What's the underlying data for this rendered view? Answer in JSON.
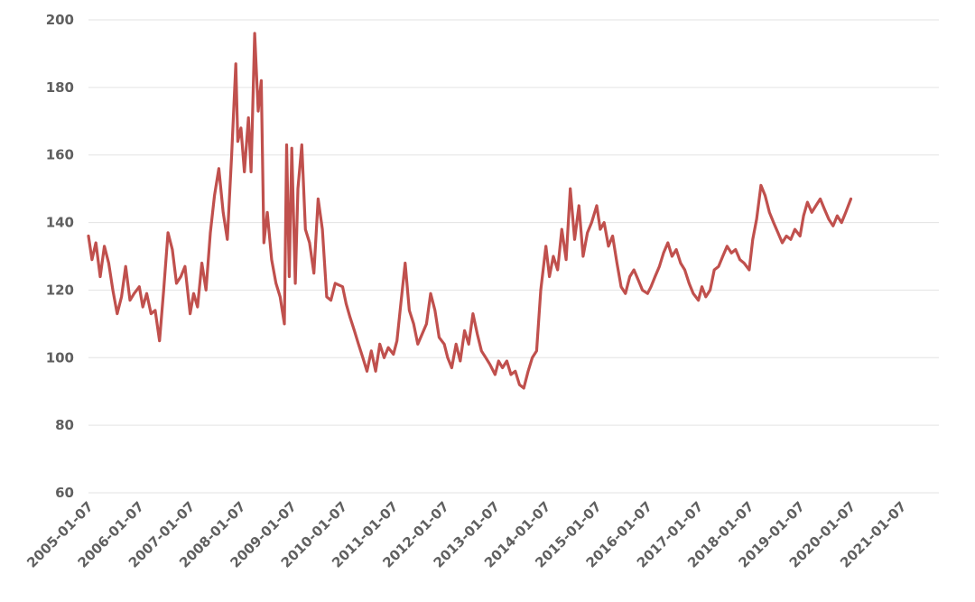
{
  "chart_data": {
    "type": "line",
    "title": "",
    "xlabel": "",
    "ylabel": "",
    "ylim": [
      60,
      200
    ],
    "yticks": [
      60,
      80,
      100,
      120,
      140,
      160,
      180,
      200
    ],
    "xlim": [
      "2005-01-07",
      "2022-02-11"
    ],
    "xticks": [
      "2005-01-07",
      "2006-01-07",
      "2007-01-07",
      "2008-01-07",
      "2009-01-07",
      "2010-01-07",
      "2011-01-07",
      "2012-01-07",
      "2013-01-07",
      "2014-01-07",
      "2015-01-07",
      "2016-01-07",
      "2017-01-07",
      "2018-01-07",
      "2019-01-07",
      "2020-01-07",
      "2021-01-07"
    ],
    "grid": "horizontal",
    "legend": "none",
    "series": [
      {
        "color": "#c0504d",
        "points": [
          [
            "2005-01-07",
            136
          ],
          [
            "2005-02-01",
            129
          ],
          [
            "2005-03-01",
            134
          ],
          [
            "2005-04-01",
            124
          ],
          [
            "2005-05-01",
            133
          ],
          [
            "2005-06-01",
            128
          ],
          [
            "2005-07-01",
            120
          ],
          [
            "2005-08-01",
            113
          ],
          [
            "2005-09-01",
            118
          ],
          [
            "2005-10-01",
            127
          ],
          [
            "2005-11-01",
            117
          ],
          [
            "2005-12-01",
            119
          ],
          [
            "2006-01-07",
            121
          ],
          [
            "2006-02-01",
            115
          ],
          [
            "2006-03-01",
            119
          ],
          [
            "2006-04-01",
            113
          ],
          [
            "2006-05-01",
            114
          ],
          [
            "2006-06-01",
            105
          ],
          [
            "2006-07-01",
            120
          ],
          [
            "2006-08-01",
            137
          ],
          [
            "2006-09-01",
            132
          ],
          [
            "2006-10-01",
            122
          ],
          [
            "2006-11-01",
            124
          ],
          [
            "2006-12-01",
            127
          ],
          [
            "2007-01-07",
            113
          ],
          [
            "2007-02-01",
            119
          ],
          [
            "2007-03-01",
            115
          ],
          [
            "2007-04-01",
            128
          ],
          [
            "2007-05-01",
            120
          ],
          [
            "2007-06-01",
            137
          ],
          [
            "2007-07-01",
            148
          ],
          [
            "2007-08-01",
            156
          ],
          [
            "2007-09-01",
            143
          ],
          [
            "2007-10-01",
            135
          ],
          [
            "2007-11-01",
            160
          ],
          [
            "2007-12-01",
            187
          ],
          [
            "2007-12-15",
            164
          ],
          [
            "2008-01-07",
            168
          ],
          [
            "2008-02-01",
            155
          ],
          [
            "2008-03-01",
            171
          ],
          [
            "2008-03-20",
            155
          ],
          [
            "2008-04-15",
            196
          ],
          [
            "2008-05-10",
            173
          ],
          [
            "2008-06-01",
            182
          ],
          [
            "2008-06-20",
            134
          ],
          [
            "2008-07-15",
            143
          ],
          [
            "2008-08-15",
            129
          ],
          [
            "2008-09-15",
            122
          ],
          [
            "2008-10-15",
            118
          ],
          [
            "2008-11-15",
            110
          ],
          [
            "2008-12-01",
            163
          ],
          [
            "2008-12-20",
            124
          ],
          [
            "2009-01-07",
            162
          ],
          [
            "2009-02-01",
            122
          ],
          [
            "2009-02-20",
            150
          ],
          [
            "2009-03-20",
            163
          ],
          [
            "2009-04-15",
            138
          ],
          [
            "2009-05-15",
            134
          ],
          [
            "2009-06-15",
            125
          ],
          [
            "2009-07-15",
            147
          ],
          [
            "2009-08-15",
            138
          ],
          [
            "2009-09-15",
            118
          ],
          [
            "2009-10-15",
            117
          ],
          [
            "2009-11-15",
            122
          ],
          [
            "2010-01-07",
            121
          ],
          [
            "2010-02-01",
            116
          ],
          [
            "2010-03-01",
            112
          ],
          [
            "2010-04-01",
            108
          ],
          [
            "2010-05-01",
            104
          ],
          [
            "2010-06-01",
            100
          ],
          [
            "2010-07-01",
            96
          ],
          [
            "2010-08-01",
            102
          ],
          [
            "2010-09-01",
            96
          ],
          [
            "2010-10-01",
            104
          ],
          [
            "2010-11-01",
            100
          ],
          [
            "2010-12-01",
            103
          ],
          [
            "2011-01-07",
            101
          ],
          [
            "2011-02-01",
            105
          ],
          [
            "2011-03-01",
            116
          ],
          [
            "2011-04-01",
            128
          ],
          [
            "2011-05-01",
            114
          ],
          [
            "2011-06-01",
            110
          ],
          [
            "2011-07-01",
            104
          ],
          [
            "2011-08-01",
            107
          ],
          [
            "2011-09-01",
            110
          ],
          [
            "2011-10-01",
            119
          ],
          [
            "2011-11-01",
            114
          ],
          [
            "2011-12-01",
            106
          ],
          [
            "2012-01-07",
            104
          ],
          [
            "2012-02-01",
            100
          ],
          [
            "2012-03-01",
            97
          ],
          [
            "2012-04-01",
            104
          ],
          [
            "2012-05-01",
            99
          ],
          [
            "2012-06-01",
            108
          ],
          [
            "2012-07-01",
            104
          ],
          [
            "2012-08-01",
            113
          ],
          [
            "2012-09-01",
            107
          ],
          [
            "2012-10-01",
            102
          ],
          [
            "2012-11-01",
            100
          ],
          [
            "2012-12-01",
            98
          ],
          [
            "2013-01-07",
            95
          ],
          [
            "2013-02-01",
            99
          ],
          [
            "2013-03-01",
            97
          ],
          [
            "2013-04-01",
            99
          ],
          [
            "2013-05-01",
            95
          ],
          [
            "2013-06-01",
            96
          ],
          [
            "2013-07-01",
            92
          ],
          [
            "2013-08-01",
            91
          ],
          [
            "2013-09-01",
            96
          ],
          [
            "2013-10-01",
            100
          ],
          [
            "2013-11-01",
            102
          ],
          [
            "2013-12-01",
            120
          ],
          [
            "2014-01-07",
            133
          ],
          [
            "2014-02-01",
            124
          ],
          [
            "2014-03-01",
            130
          ],
          [
            "2014-04-01",
            126
          ],
          [
            "2014-05-01",
            138
          ],
          [
            "2014-06-01",
            129
          ],
          [
            "2014-07-01",
            150
          ],
          [
            "2014-08-01",
            135
          ],
          [
            "2014-09-01",
            145
          ],
          [
            "2014-10-01",
            130
          ],
          [
            "2014-11-01",
            137
          ],
          [
            "2014-12-01",
            140
          ],
          [
            "2015-01-07",
            145
          ],
          [
            "2015-02-01",
            138
          ],
          [
            "2015-03-01",
            140
          ],
          [
            "2015-04-01",
            133
          ],
          [
            "2015-05-01",
            136
          ],
          [
            "2015-06-01",
            128
          ],
          [
            "2015-07-01",
            121
          ],
          [
            "2015-08-01",
            119
          ],
          [
            "2015-09-01",
            124
          ],
          [
            "2015-10-01",
            126
          ],
          [
            "2015-11-01",
            123
          ],
          [
            "2015-12-01",
            120
          ],
          [
            "2016-01-07",
            119
          ],
          [
            "2016-02-01",
            121
          ],
          [
            "2016-03-01",
            124
          ],
          [
            "2016-04-01",
            127
          ],
          [
            "2016-05-01",
            131
          ],
          [
            "2016-06-01",
            134
          ],
          [
            "2016-07-01",
            130
          ],
          [
            "2016-08-01",
            132
          ],
          [
            "2016-09-01",
            128
          ],
          [
            "2016-10-01",
            126
          ],
          [
            "2016-11-01",
            122
          ],
          [
            "2016-12-01",
            119
          ],
          [
            "2017-01-07",
            117
          ],
          [
            "2017-02-01",
            121
          ],
          [
            "2017-03-01",
            118
          ],
          [
            "2017-04-01",
            120
          ],
          [
            "2017-05-01",
            126
          ],
          [
            "2017-06-01",
            127
          ],
          [
            "2017-07-01",
            130
          ],
          [
            "2017-08-01",
            133
          ],
          [
            "2017-09-01",
            131
          ],
          [
            "2017-10-01",
            132
          ],
          [
            "2017-11-01",
            129
          ],
          [
            "2017-12-01",
            128
          ],
          [
            "2018-01-07",
            126
          ],
          [
            "2018-02-01",
            135
          ],
          [
            "2018-03-01",
            141
          ],
          [
            "2018-04-01",
            151
          ],
          [
            "2018-05-01",
            148
          ],
          [
            "2018-06-01",
            143
          ],
          [
            "2018-07-01",
            140
          ],
          [
            "2018-08-01",
            137
          ],
          [
            "2018-09-01",
            134
          ],
          [
            "2018-10-01",
            136
          ],
          [
            "2018-11-01",
            135
          ],
          [
            "2018-12-01",
            138
          ],
          [
            "2019-01-07",
            136
          ],
          [
            "2019-02-01",
            142
          ],
          [
            "2019-03-01",
            146
          ],
          [
            "2019-04-01",
            143
          ],
          [
            "2019-05-01",
            145
          ],
          [
            "2019-06-01",
            147
          ],
          [
            "2019-07-01",
            144
          ],
          [
            "2019-08-01",
            141
          ],
          [
            "2019-09-01",
            139
          ],
          [
            "2019-10-01",
            142
          ],
          [
            "2019-11-01",
            140
          ],
          [
            "2019-12-01",
            143
          ],
          [
            "2020-01-07",
            147
          ]
        ]
      }
    ]
  }
}
